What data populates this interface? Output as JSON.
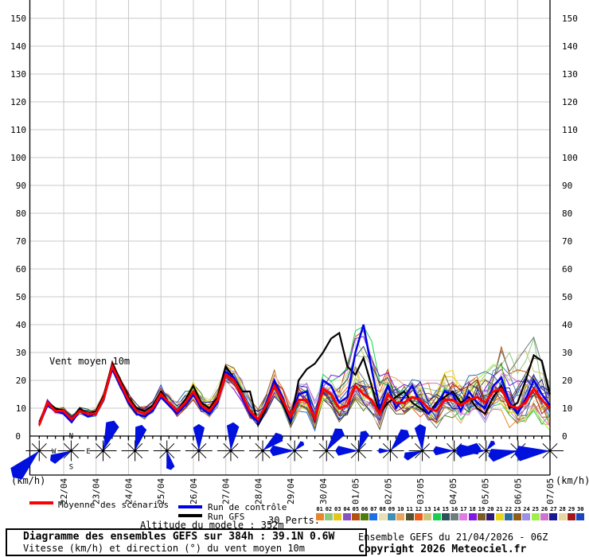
{
  "chart_data": {
    "type": "line",
    "title": "Vent moyen 10m",
    "ylabel": "(km/h)",
    "y_unit_left": "(km/h)",
    "y_unit_right": "(km/h)",
    "zero_label": "0",
    "ylim": [
      0,
      157
    ],
    "y_ticks": [
      0,
      10,
      20,
      30,
      40,
      50,
      60,
      70,
      80,
      90,
      100,
      110,
      120,
      130,
      140,
      150
    ],
    "grid": true,
    "x_start": "21/04 06Z",
    "x_step_hours": 6,
    "n_points": 64,
    "x_labels": [
      "22/04",
      "23/04",
      "24/04",
      "25/04",
      "26/04",
      "27/04",
      "28/04",
      "29/04",
      "30/04",
      "01/05",
      "02/05",
      "03/05",
      "04/05",
      "05/05",
      "06/05",
      "07/05"
    ],
    "series": [
      {
        "name": "Moyenne des scénarios",
        "color": "#ff0000",
        "width": 3,
        "values": [
          4,
          12,
          9,
          9,
          6,
          9,
          8,
          8,
          14,
          25,
          19,
          13,
          9,
          8,
          10,
          15,
          12,
          9,
          12,
          16,
          11,
          9,
          13,
          22,
          20,
          15,
          9,
          6,
          11,
          18,
          13,
          7,
          13,
          13,
          6,
          17,
          15,
          10,
          11,
          18,
          15,
          13,
          8,
          15,
          12,
          12,
          14,
          13,
          10,
          9,
          13,
          13,
          11,
          13,
          14,
          12,
          16,
          17,
          11,
          10,
          12,
          17,
          13,
          10
        ]
      },
      {
        "name": "Run de contrôle",
        "color": "#0000ee",
        "width": 2.5,
        "values": [
          4,
          11,
          9,
          8,
          5,
          9,
          7,
          8,
          14,
          24,
          18,
          12,
          8,
          7,
          9,
          14,
          11,
          8,
          11,
          15,
          10,
          8,
          12,
          23,
          21,
          14,
          8,
          5,
          12,
          20,
          14,
          6,
          15,
          16,
          5,
          20,
          18,
          12,
          14,
          30,
          40,
          24,
          10,
          18,
          10,
          14,
          18,
          12,
          8,
          11,
          16,
          15,
          9,
          16,
          12,
          10,
          18,
          21,
          12,
          8,
          13,
          20,
          15,
          11
        ]
      },
      {
        "name": "Run GFS",
        "color": "#000000",
        "width": 2.2,
        "values": [
          5,
          12,
          10,
          9,
          6,
          10,
          8,
          9,
          15,
          26,
          20,
          14,
          10,
          9,
          11,
          16,
          12,
          9,
          13,
          18,
          12,
          10,
          14,
          25,
          21,
          16,
          16,
          4,
          10,
          19,
          12,
          5,
          20,
          24,
          26,
          30,
          35,
          37,
          25,
          22,
          28,
          18,
          8,
          12,
          14,
          16,
          12,
          10,
          8,
          12,
          14,
          16,
          12,
          14,
          10,
          8,
          14,
          18,
          10,
          12,
          20,
          29,
          27,
          15
        ]
      }
    ],
    "members": {
      "count": 30,
      "colors": [
        "#e8862a",
        "#8fc97e",
        "#e8c619",
        "#8a52c0",
        "#b5500f",
        "#4f7d0a",
        "#1e6fe8",
        "#e8dfb5",
        "#3e8fb5",
        "#e8a35c",
        "#52522e",
        "#f05a19",
        "#cfc47e",
        "#19cf52",
        "#2e4f5c",
        "#6e7d7d",
        "#e07be0",
        "#7d19e0",
        "#7d5c23",
        "#2e1975",
        "#e8d619",
        "#2e6fa3",
        "#8f5c19",
        "#9e8fe8",
        "#9ef047",
        "#cf75cf",
        "#19198f",
        "#e8d6a3",
        "#a31919",
        "#1947c0"
      ]
    },
    "wind_roses": {
      "note": "petals = [wind-from degrees, length px]",
      "color": "#0010dd",
      "compass": [
        "N",
        "E",
        "S",
        "W"
      ],
      "roses": [
        {
          "label": "21/04",
          "petals": [
            [
              225,
              42
            ]
          ]
        },
        {
          "label": "22/04",
          "petals": [
            [
              245,
              26
            ]
          ]
        },
        {
          "label": "23/04",
          "petals": [
            [
              20,
              36
            ]
          ]
        },
        {
          "label": "24/04",
          "petals": [
            [
              15,
              30
            ]
          ]
        },
        {
          "label": "25/04",
          "petals": [
            [
              168,
              22
            ]
          ]
        },
        {
          "label": "26/04",
          "petals": [
            [
              0,
              30
            ]
          ]
        },
        {
          "label": "27/04",
          "petals": [
            [
              5,
              32
            ]
          ]
        },
        {
          "label": "28/04",
          "petals": [
            [
              50,
              28
            ]
          ]
        },
        {
          "label": "29/04",
          "petals": [
            [
              270,
              28
            ],
            [
              45,
              14
            ]
          ]
        },
        {
          "label": "30/04",
          "petals": [
            [
              35,
              30
            ]
          ]
        },
        {
          "label": "01/05",
          "petals": [
            [
              270,
              26
            ],
            [
              20,
              24
            ]
          ]
        },
        {
          "label": "02/05",
          "petals": [
            [
              40,
              30
            ],
            [
              270,
              14
            ]
          ]
        },
        {
          "label": "03/05",
          "petals": [
            [
              355,
              30
            ],
            [
              250,
              22
            ]
          ]
        },
        {
          "label": "04/05",
          "petals": [
            [
              85,
              30
            ],
            [
              270,
              24
            ]
          ]
        },
        {
          "label": "05/05",
          "petals": [
            [
              270,
              34
            ],
            [
              40,
              14
            ]
          ]
        },
        {
          "label": "06/05",
          "petals": [
            [
              260,
              34
            ]
          ]
        },
        {
          "label": "07/05",
          "petals": [
            [
              265,
              40
            ]
          ]
        }
      ]
    }
  },
  "legend": {
    "mean_label": "Moyenne des scénarios",
    "mean_color": "#ff0000",
    "control_label": "Run de contrôle",
    "control_color": "#0000ee",
    "gfs_label": "Run GFS",
    "gfs_color": "#000000",
    "perts_label": "30 Perts.",
    "altitude": "Altitude du modele : 352m"
  },
  "perts": {
    "numbers": [
      "01",
      "02",
      "03",
      "04",
      "05",
      "06",
      "07",
      "08",
      "09",
      "10",
      "11",
      "12",
      "13",
      "14",
      "15",
      "16",
      "17",
      "18",
      "19",
      "20",
      "21",
      "22",
      "23",
      "24",
      "25",
      "26",
      "27",
      "28",
      "29",
      "30"
    ],
    "colors": [
      "#e8862a",
      "#8fc97e",
      "#e8c619",
      "#8a52c0",
      "#b5500f",
      "#4f7d0a",
      "#1e6fe8",
      "#e8dfb5",
      "#3e8fb5",
      "#e8a35c",
      "#52522e",
      "#f05a19",
      "#cfc47e",
      "#19cf52",
      "#2e4f5c",
      "#6e7d7d",
      "#e07be0",
      "#7d19e0",
      "#7d5c23",
      "#2e1975",
      "#e8d619",
      "#2e6fa3",
      "#8f5c19",
      "#9e8fe8",
      "#9ef047",
      "#cf75cf",
      "#19198f",
      "#e8d6a3",
      "#a31919",
      "#1947c0"
    ]
  },
  "footer": {
    "title": "Diagramme des ensembles GEFS sur 384h : 39.1N 0.6W",
    "subtitle": "Vitesse (km/h) et direction (°) du vent moyen 10m",
    "run_info": "Ensemble GEFS du 21/04/2026 - 06Z",
    "copyright": "Copyright 2026 Meteociel.fr"
  }
}
